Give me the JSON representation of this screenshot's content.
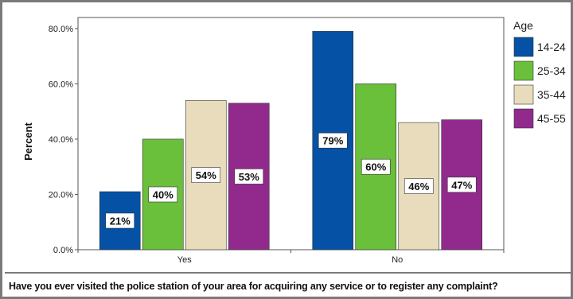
{
  "chart_data": {
    "type": "bar",
    "categories": [
      "Yes",
      "No"
    ],
    "series": [
      {
        "name": "14-24",
        "color": "#0451a5",
        "values": [
          21,
          79
        ],
        "labels": [
          "21%",
          "79%"
        ]
      },
      {
        "name": "25-34",
        "color": "#6abf3b",
        "values": [
          40,
          60
        ],
        "labels": [
          "40%",
          "60%"
        ]
      },
      {
        "name": "35-44",
        "color": "#e8dcbc",
        "values": [
          54,
          46
        ],
        "labels": [
          "54%",
          "46%"
        ]
      },
      {
        "name": "45-55",
        "color": "#922a8e",
        "values": [
          53,
          47
        ],
        "labels": [
          "53%",
          "47%"
        ]
      }
    ],
    "yticks": [
      "0.0%",
      "20.0%",
      "40.0%",
      "60.0%",
      "80.0%"
    ],
    "ytick_values": [
      0,
      20,
      40,
      60,
      80
    ],
    "ylim": [
      0,
      84
    ],
    "ylabel": "Percent",
    "xlabel": "",
    "legend_title": "Age",
    "legend_position": "top-right",
    "grid": false
  },
  "question": "Have you ever visited the police station of your area for acquiring any service or to register any complaint?"
}
